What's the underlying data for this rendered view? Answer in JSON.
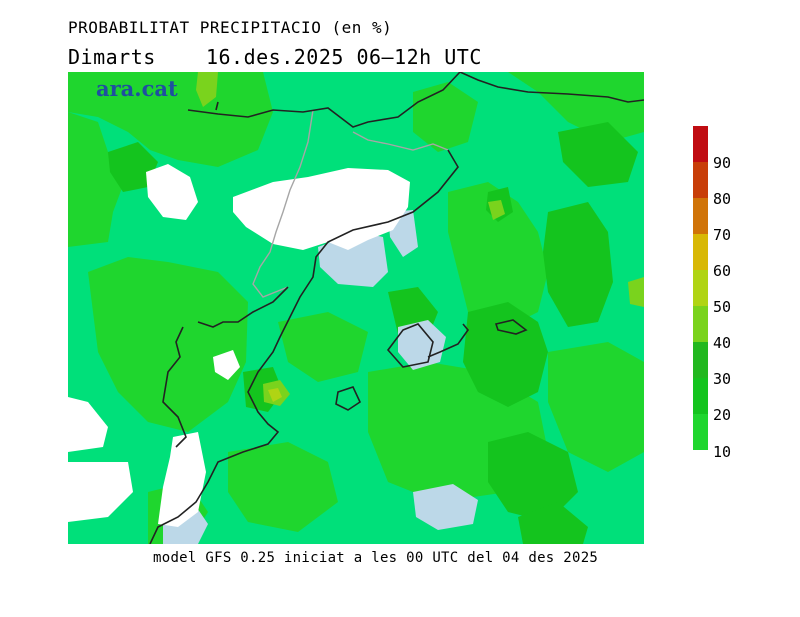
{
  "header": {
    "title": "PROBABILITAT PRECIPITACIO (en %)",
    "subtitle": "Dimarts    16.des.2025 06–12h UTC"
  },
  "brand": {
    "logo_text": "ara.cat",
    "color": "#1f4fa0"
  },
  "footer": {
    "model_info": "model GFS 0.25 iniciat a les 00 UTC del 04 des 2025"
  },
  "legend": {
    "items": [
      {
        "label": "10",
        "color": "#00e07a"
      },
      {
        "label": "20",
        "color": "#1fd62e"
      },
      {
        "label": "30",
        "color": "#14c41e"
      },
      {
        "label": "40",
        "color": "#22b81f"
      },
      {
        "label": "50",
        "color": "#7ad31d"
      },
      {
        "label": "60",
        "color": "#b0d414"
      },
      {
        "label": "70",
        "color": "#d8b806"
      },
      {
        "label": "80",
        "color": "#d07408"
      },
      {
        "label": "90",
        "color": "#c83e08"
      },
      {
        "label": "",
        "color": "#c00c12"
      }
    ]
  },
  "map": {
    "colors": {
      "base_10_20": "#00e07a",
      "band_20_30": "#1fd62e",
      "band_30_40": "#14c41e",
      "band_40_50": "#7ad31d",
      "band_50_60": "#b0d414",
      "below_5": "#ffffff",
      "band_5_10": "#bcd8e8",
      "coastline": "#222222",
      "border": "#a6a6a6"
    }
  }
}
